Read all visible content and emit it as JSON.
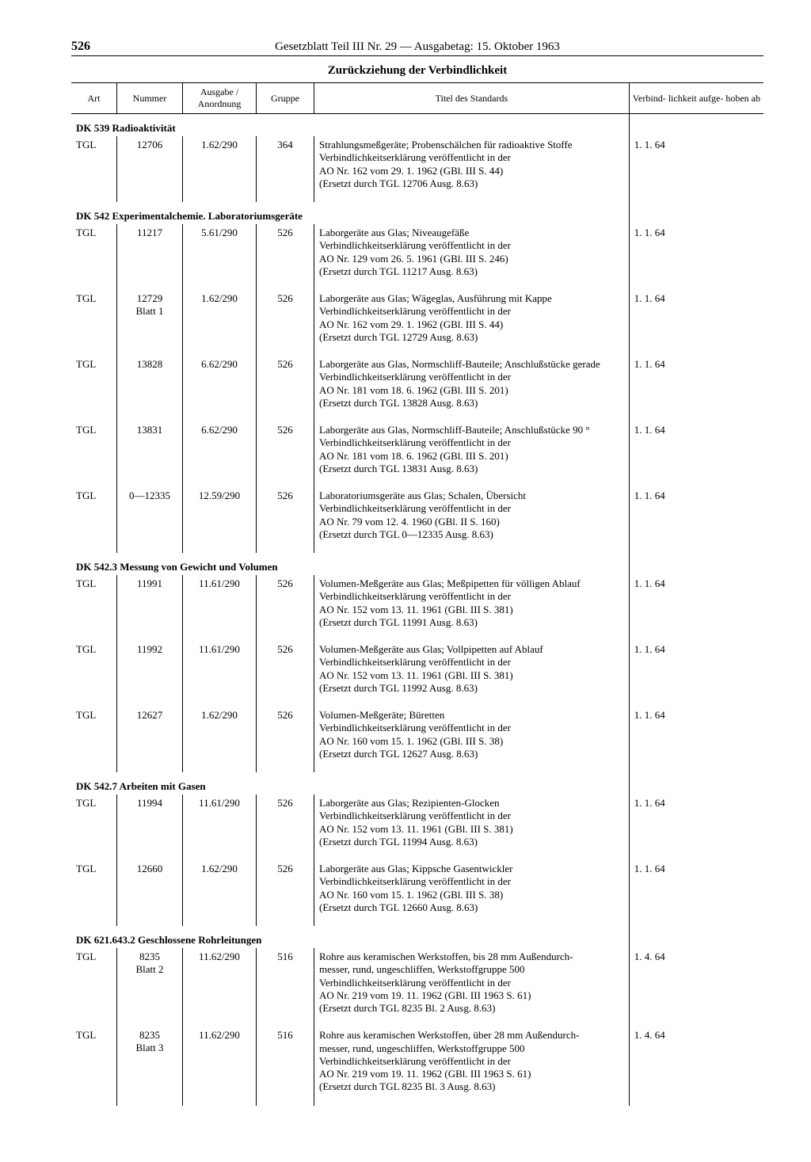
{
  "page": {
    "number": "526",
    "running_title": "Gesetzblatt Teil III Nr. 29 — Ausgabetag: 15. Oktober 1963",
    "section_title": "Zurückziehung der Verbindlichkeit"
  },
  "columns": {
    "art": "Art",
    "nummer": "Nummer",
    "ausgabe": "Ausgabe /\nAnordnung",
    "gruppe": "Gruppe",
    "titel": "Titel des Standards",
    "verbind": "Verbind-\nlichkeit\naufge-\nhoben ab"
  },
  "sections": [
    {
      "heading": "DK 539 Radioaktivität",
      "rows": [
        {
          "art": "TGL",
          "nummer": "12706",
          "ausgabe": "1.62/290",
          "gruppe": "364",
          "titel": "Strahlungsmeßgeräte; Probenschälchen für radioaktive Stoffe\nVerbindlichkeitserklärung veröffentlicht in der\nAO Nr. 162 vom 29. 1. 1962 (GBl. III S. 44)\n(Ersetzt durch TGL 12706 Ausg. 8.63)",
          "datum": "1.  1. 64"
        }
      ]
    },
    {
      "heading": "DK 542 Experimentalchemie. Laboratoriumsgeräte",
      "rows": [
        {
          "art": "TGL",
          "nummer": "11217",
          "ausgabe": "5.61/290",
          "gruppe": "526",
          "titel": "Laborgeräte aus Glas; Niveaugefäße\nVerbindlichkeitserklärung veröffentlicht in der\nAO Nr. 129 vom 26. 5. 1961 (GBl. III S. 246)\n(Ersetzt durch TGL 11217 Ausg. 8.63)",
          "datum": "1.  1. 64"
        },
        {
          "art": "TGL",
          "nummer": "12729\nBlatt 1",
          "ausgabe": "1.62/290",
          "gruppe": "526",
          "titel": "Laborgeräte aus Glas; Wägeglas, Ausführung mit Kappe\nVerbindlichkeitserklärung veröffentlicht in der\nAO Nr. 162 vom 29. 1. 1962 (GBl. III S. 44)\n(Ersetzt durch TGL 12729 Ausg. 8.63)",
          "datum": "1.  1. 64"
        },
        {
          "art": "TGL",
          "nummer": "13828",
          "ausgabe": "6.62/290",
          "gruppe": "526",
          "titel": "Laborgeräte aus Glas, Normschliff-Bauteile; Anschlußstücke gerade\nVerbindlichkeitserklärung veröffentlicht in der\nAO Nr. 181 vom 18. 6. 1962 (GBl. III S. 201)\n(Ersetzt durch TGL 13828 Ausg. 8.63)",
          "datum": "1.  1. 64"
        },
        {
          "art": "TGL",
          "nummer": "13831",
          "ausgabe": "6.62/290",
          "gruppe": "526",
          "titel": "Laborgeräte aus Glas, Normschliff-Bauteile; Anschlußstücke 90 °\nVerbindlichkeitserklärung veröffentlicht in der\nAO Nr. 181 vom 18. 6. 1962 (GBl. III S. 201)\n(Ersetzt durch TGL 13831 Ausg. 8.63)",
          "datum": "1.  1. 64"
        },
        {
          "art": "TGL",
          "nummer": "0—12335",
          "ausgabe": "12.59/290",
          "gruppe": "526",
          "titel": "Laboratoriumsgeräte aus Glas; Schalen, Übersicht\nVerbindlichkeitserklärung veröffentlicht in der\nAO Nr. 79 vom 12. 4. 1960 (GBl. II S. 160)\n(Ersetzt durch TGL 0—12335 Ausg. 8.63)",
          "datum": "1.  1. 64"
        }
      ]
    },
    {
      "heading": "DK 542.3 Messung von Gewicht und Volumen",
      "rows": [
        {
          "art": "TGL",
          "nummer": "11991",
          "ausgabe": "11.61/290",
          "gruppe": "526",
          "titel": "Volumen-Meßgeräte aus Glas; Meßpipetten für völligen Ablauf\nVerbindlichkeitserklärung veröffentlicht in der\nAO Nr. 152 vom 13. 11. 1961 (GBl. III S. 381)\n(Ersetzt durch TGL 11991 Ausg. 8.63)",
          "datum": "1.  1. 64"
        },
        {
          "art": "TGL",
          "nummer": "11992",
          "ausgabe": "11.61/290",
          "gruppe": "526",
          "titel": "Volumen-Meßgeräte aus Glas; Vollpipetten auf Ablauf\nVerbindlichkeitserklärung veröffentlicht in der\nAO Nr. 152 vom 13. 11. 1961 (GBl. III S. 381)\n(Ersetzt durch TGL 11992 Ausg. 8.63)",
          "datum": "1.  1. 64"
        },
        {
          "art": "TGL",
          "nummer": "12627",
          "ausgabe": "1.62/290",
          "gruppe": "526",
          "titel": "Volumen-Meßgeräte; Büretten\nVerbindlichkeitserklärung veröffentlicht in der\nAO Nr. 160 vom 15. 1. 1962 (GBl. III S. 38)\n(Ersetzt durch TGL 12627 Ausg. 8.63)",
          "datum": "1.  1. 64"
        }
      ]
    },
    {
      "heading": "DK 542.7 Arbeiten mit Gasen",
      "rows": [
        {
          "art": "TGL",
          "nummer": "11994",
          "ausgabe": "11.61/290",
          "gruppe": "526",
          "titel": "Laborgeräte aus Glas; Rezipienten-Glocken\nVerbindlichkeitserklärung veröffentlicht in der\nAO Nr. 152 vom 13. 11. 1961 (GBl. III S. 381)\n(Ersetzt durch TGL 11994 Ausg. 8.63)",
          "datum": "1.  1. 64"
        },
        {
          "art": "TGL",
          "nummer": "12660",
          "ausgabe": "1.62/290",
          "gruppe": "526",
          "titel": "Laborgeräte aus Glas; Kippsche Gasentwickler\nVerbindlichkeitserklärung veröffentlicht in der\nAO Nr. 160 vom 15. 1. 1962 (GBl. III S. 38)\n(Ersetzt durch TGL 12660 Ausg. 8.63)",
          "datum": "1.  1. 64"
        }
      ]
    },
    {
      "heading": "DK 621.643.2 Geschlossene Rohrleitungen",
      "rows": [
        {
          "art": "TGL",
          "nummer": "8235\nBlatt 2",
          "ausgabe": "11.62/290",
          "gruppe": "516",
          "titel": "Rohre aus keramischen Werkstoffen, bis 28 mm Außendurch-\nmesser, rund, ungeschliffen, Werkstoffgruppe 500\nVerbindlichkeitserklärung veröffentlicht in der\nAO Nr. 219 vom 19. 11. 1962 (GBl. III 1963 S. 61)\n(Ersetzt durch TGL 8235 Bl. 2 Ausg. 8.63)",
          "datum": "1.  4. 64"
        },
        {
          "art": "TGL",
          "nummer": "8235\nBlatt 3",
          "ausgabe": "11.62/290",
          "gruppe": "516",
          "titel": "Rohre aus keramischen Werkstoffen, über 28 mm Außendurch-\nmesser, rund, ungeschliffen, Werkstoffgruppe 500\nVerbindlichkeitserklärung veröffentlicht in der\nAO Nr. 219 vom 19. 11. 1962 (GBl. III 1963 S. 61)\n(Ersetzt durch TGL 8235 Bl. 3 Ausg. 8.63)",
          "datum": "1.  4. 64"
        }
      ]
    }
  ]
}
